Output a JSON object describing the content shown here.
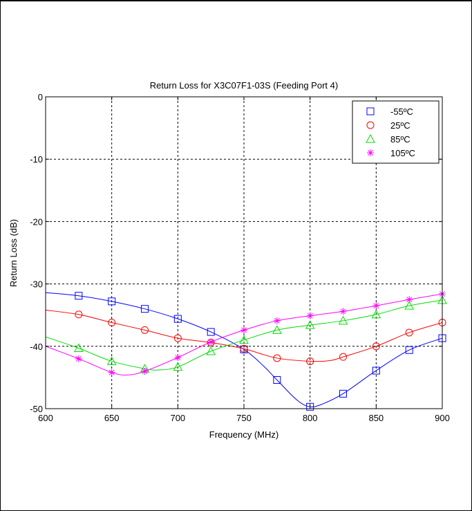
{
  "chart_data": {
    "type": "line",
    "title": "Return Loss for X3C07F1-03S (Feeding Port 4)",
    "xlabel": "Frequency (MHz)",
    "ylabel": "Return Loss (dB)",
    "xlim": [
      600,
      900
    ],
    "ylim": [
      -50,
      0
    ],
    "x_ticks": [
      600,
      650,
      700,
      750,
      800,
      850,
      900
    ],
    "y_ticks": [
      0,
      -10,
      -20,
      -30,
      -40,
      -50
    ],
    "grid": true,
    "legend_position": "top-right",
    "series": [
      {
        "name": "-55ºC",
        "color": "#0000ff",
        "marker": "square",
        "x": [
          600,
          625,
          650,
          675,
          700,
          725,
          750,
          765,
          775,
          790,
          800,
          810,
          825,
          850,
          875,
          900
        ],
        "y": [
          -31.4,
          -31.9,
          -32.8,
          -34.0,
          -35.6,
          -37.7,
          -40.5,
          -43.2,
          -45.4,
          -48.6,
          -49.7,
          -49.2,
          -47.6,
          -43.9,
          -40.6,
          -38.7
        ],
        "marker_x": [
          625,
          650,
          675,
          700,
          725,
          750,
          775,
          800,
          825,
          850,
          875,
          900
        ]
      },
      {
        "name": "25ºC",
        "color": "#ff0000",
        "marker": "circle",
        "x": [
          600,
          625,
          650,
          675,
          700,
          725,
          750,
          775,
          800,
          815,
          825,
          850,
          875,
          900
        ],
        "y": [
          -34.2,
          -34.9,
          -36.2,
          -37.4,
          -38.7,
          -39.4,
          -40.4,
          -41.9,
          -42.4,
          -42.3,
          -41.7,
          -40.0,
          -37.8,
          -36.2
        ],
        "marker_x": [
          625,
          650,
          675,
          700,
          725,
          750,
          775,
          800,
          825,
          850,
          875,
          900
        ]
      },
      {
        "name": "85ºC",
        "color": "#00dd00",
        "marker": "triangle",
        "x": [
          600,
          625,
          650,
          675,
          685,
          700,
          725,
          750,
          775,
          800,
          825,
          850,
          875,
          900
        ],
        "y": [
          -38.5,
          -40.3,
          -42.4,
          -43.6,
          -43.8,
          -43.3,
          -40.8,
          -39.0,
          -37.4,
          -36.6,
          -35.9,
          -34.9,
          -33.5,
          -32.6
        ],
        "marker_x": [
          625,
          650,
          675,
          700,
          725,
          750,
          775,
          800,
          825,
          850,
          875,
          900
        ]
      },
      {
        "name": "105ºC",
        "color": "#ff00ff",
        "marker": "star",
        "x": [
          600,
          625,
          650,
          662,
          675,
          700,
          725,
          750,
          775,
          800,
          825,
          850,
          875,
          900
        ],
        "y": [
          -40.0,
          -42.0,
          -44.2,
          -44.6,
          -44.0,
          -41.8,
          -39.3,
          -37.4,
          -35.9,
          -35.1,
          -34.4,
          -33.5,
          -32.5,
          -31.6
        ],
        "marker_x": [
          625,
          650,
          675,
          700,
          725,
          750,
          775,
          800,
          825,
          850,
          875,
          900
        ]
      }
    ]
  }
}
